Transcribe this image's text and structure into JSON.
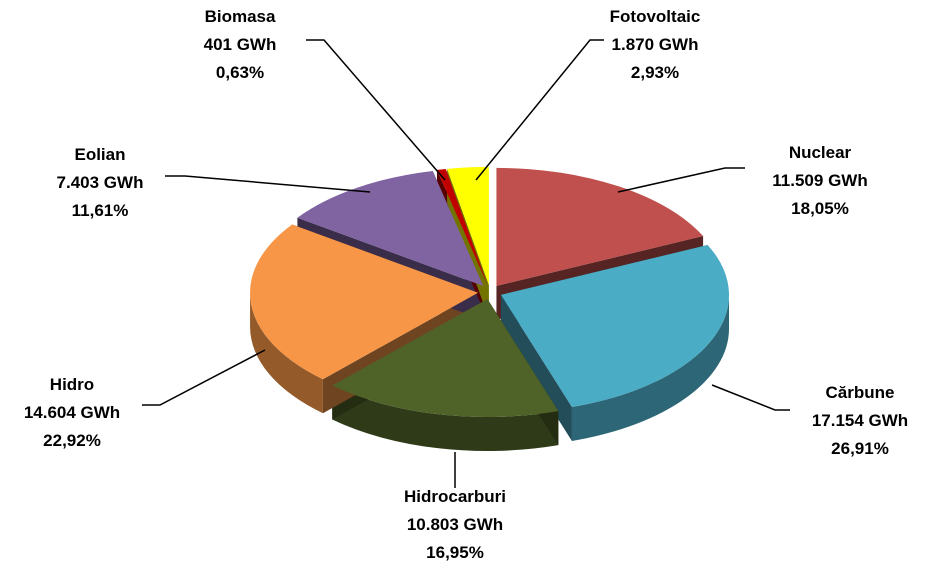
{
  "chart_data": {
    "type": "pie3d",
    "categories": [
      "Nuclear",
      "Cărbune",
      "Hidrocarburi",
      "Hidro",
      "Eolian",
      "Biomasa",
      "Fotovoltaic"
    ],
    "values": [
      11509,
      17154,
      10803,
      14604,
      7403,
      401,
      1870
    ],
    "value_labels": [
      "11.509 GWh",
      "17.154 GWh",
      "10.803 GWh",
      "14.604 GWh",
      "7.403 GWh",
      "401 GWh",
      "1.870 GWh"
    ],
    "percentages": [
      18.05,
      26.91,
      16.95,
      22.92,
      11.61,
      0.63,
      2.93
    ],
    "percentage_labels": [
      "18,05%",
      "26,91%",
      "16,95%",
      "22,92%",
      "11,61%",
      "0,63%",
      "2,93%"
    ],
    "colors": [
      "#c0504d",
      "#4bacc6",
      "#4f6228",
      "#f79646",
      "#8064a2",
      "#c00000",
      "#ffff00"
    ]
  }
}
